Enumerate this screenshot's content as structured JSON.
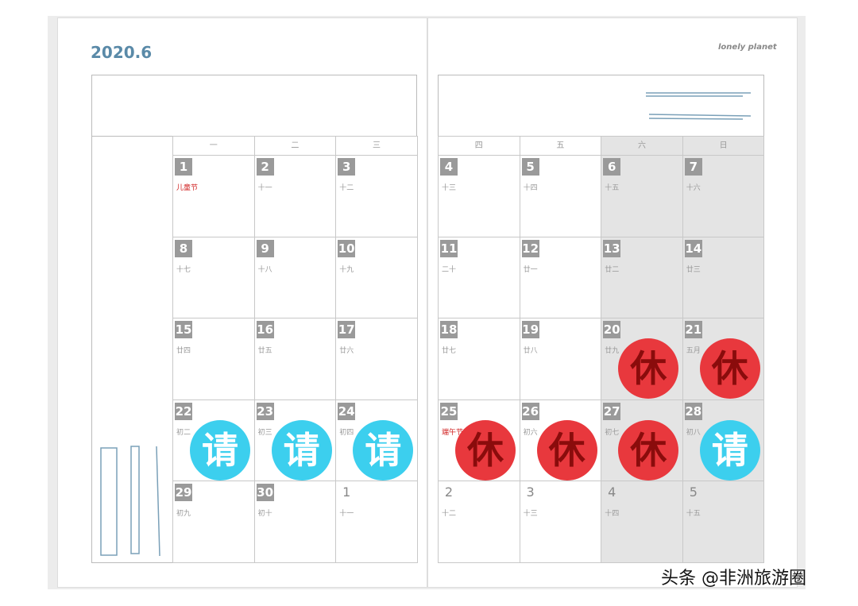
{
  "header": {
    "title": "2020.6",
    "logo": "lonely planet"
  },
  "weekdays": [
    "一",
    "二",
    "三",
    "四",
    "五",
    "六",
    "日"
  ],
  "weeks": [
    [
      {
        "day": 1,
        "lunar": "儿童节",
        "holiday": true
      },
      {
        "day": 2,
        "lunar": "十一"
      },
      {
        "day": 3,
        "lunar": "十二"
      },
      {
        "day": 4,
        "lunar": "十三"
      },
      {
        "day": 5,
        "lunar": "十四"
      },
      {
        "day": 6,
        "lunar": "十五"
      },
      {
        "day": 7,
        "lunar": "十六"
      }
    ],
    [
      {
        "day": 8,
        "lunar": "十七"
      },
      {
        "day": 9,
        "lunar": "十八"
      },
      {
        "day": 10,
        "lunar": "十九"
      },
      {
        "day": 11,
        "lunar": "二十"
      },
      {
        "day": 12,
        "lunar": "廿一"
      },
      {
        "day": 13,
        "lunar": "廿二"
      },
      {
        "day": 14,
        "lunar": "廿三"
      }
    ],
    [
      {
        "day": 15,
        "lunar": "廿四"
      },
      {
        "day": 16,
        "lunar": "廿五"
      },
      {
        "day": 17,
        "lunar": "廿六"
      },
      {
        "day": 18,
        "lunar": "廿七"
      },
      {
        "day": 19,
        "lunar": "廿八"
      },
      {
        "day": 20,
        "lunar": "廿九",
        "stamp": "休"
      },
      {
        "day": 21,
        "lunar": "五月",
        "stamp": "休"
      }
    ],
    [
      {
        "day": 22,
        "lunar": "初二",
        "stamp": "请"
      },
      {
        "day": 23,
        "lunar": "初三",
        "stamp": "请"
      },
      {
        "day": 24,
        "lunar": "初四",
        "stamp": "请"
      },
      {
        "day": 25,
        "lunar": "端午节",
        "holiday": true,
        "stamp": "休"
      },
      {
        "day": 26,
        "lunar": "初六",
        "stamp": "休"
      },
      {
        "day": 27,
        "lunar": "初七",
        "stamp": "休"
      },
      {
        "day": 28,
        "lunar": "初八",
        "stamp": "请"
      }
    ],
    [
      {
        "day": 29,
        "lunar": "初九"
      },
      {
        "day": 30,
        "lunar": "初十"
      },
      {
        "day": 1,
        "lunar": "十一",
        "other_month": true
      },
      {
        "day": 2,
        "lunar": "十二",
        "other_month": true
      },
      {
        "day": 3,
        "lunar": "十三",
        "other_month": true
      },
      {
        "day": 4,
        "lunar": "十四",
        "other_month": true
      },
      {
        "day": 5,
        "lunar": "十五",
        "other_month": true
      }
    ]
  ],
  "watermark": "头条 @非洲旅游圈"
}
